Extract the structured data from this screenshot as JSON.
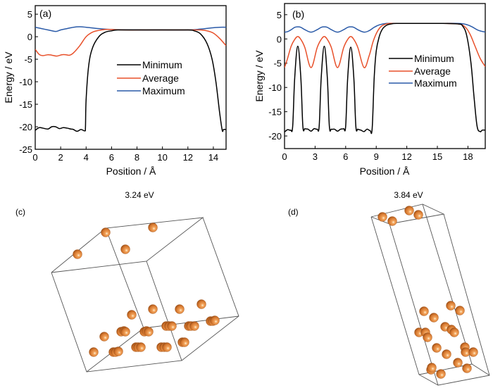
{
  "chart_data": [
    {
      "id": "a",
      "type": "line",
      "panel_label": "(a)",
      "xlabel": "Position / Å",
      "ylabel": "Energy / eV",
      "xlim": [
        0,
        15
      ],
      "ylim": [
        -25,
        6.9
      ],
      "xticks": [
        0,
        2,
        4,
        6,
        8,
        10,
        12,
        14
      ],
      "yticks": [
        5,
        0,
        -5,
        -10,
        -15,
        -20,
        -25
      ],
      "legend_position": "center-right",
      "series": [
        {
          "name": "Minimum",
          "color": "#000000",
          "x": [
            0,
            0.3,
            0.6,
            1.0,
            1.3,
            1.6,
            1.9,
            2.2,
            2.5,
            2.8,
            3.0,
            3.3,
            3.6,
            3.9,
            3.95,
            4.0,
            4.2,
            4.5,
            5.0,
            5.5,
            6.0,
            6.5,
            8,
            10,
            12,
            12.5,
            13.0,
            13.5,
            13.9,
            14.2,
            14.5,
            14.7,
            14.8,
            15.0
          ],
          "y": [
            -20.8,
            -20.2,
            -20.3,
            -20.5,
            -20.0,
            -20.0,
            -20.4,
            -20.2,
            -20.3,
            -20.5,
            -20.6,
            -21.0,
            -20.6,
            -20.9,
            -20.0,
            -14,
            -6.5,
            -2.5,
            0.0,
            1.0,
            1.3,
            1.5,
            1.5,
            1.5,
            1.5,
            1.3,
            0.6,
            -1.5,
            -5,
            -10,
            -17,
            -20.8,
            -20.6,
            -20.6
          ]
        },
        {
          "name": "Average",
          "color": "#e8502a",
          "x": [
            0,
            0.3,
            0.6,
            1.0,
            1.3,
            1.7,
            2.1,
            2.4,
            2.7,
            3.0,
            3.5,
            4.0,
            4.5,
            5.0,
            5.5,
            6.0,
            7,
            9,
            11,
            12.5,
            13.0,
            13.5,
            14.0,
            14.5,
            15.0
          ],
          "y": [
            -2.8,
            -3.9,
            -4.2,
            -4.0,
            -4.1,
            -4.3,
            -4.0,
            -4.0,
            -4.1,
            -3.6,
            -2.0,
            0.0,
            1.0,
            1.4,
            1.6,
            1.6,
            1.5,
            1.5,
            1.5,
            1.5,
            1.5,
            1.3,
            0.8,
            -0.4,
            -2.0
          ]
        },
        {
          "name": "Maximum",
          "color": "#2a5aa8",
          "x": [
            0,
            0.5,
            1.0,
            1.5,
            1.7,
            2.0,
            2.5,
            3.0,
            3.5,
            4.0,
            5.0,
            6.0,
            8,
            10,
            12,
            13,
            14,
            14.5,
            15.0
          ],
          "y": [
            2.1,
            1.8,
            1.5,
            1.2,
            1.2,
            1.5,
            1.8,
            2.1,
            2.2,
            2.1,
            1.8,
            1.6,
            1.5,
            1.5,
            1.5,
            1.7,
            2.0,
            2.1,
            2.1
          ]
        }
      ]
    },
    {
      "id": "b",
      "type": "line",
      "panel_label": "(b)",
      "xlabel": "Position / Å",
      "ylabel": "Energy / eV",
      "xlim": [
        0,
        19.7
      ],
      "ylim": [
        -22.6,
        7.3
      ],
      "xticks": [
        0,
        3,
        6,
        9,
        12,
        15,
        18
      ],
      "yticks": [
        5,
        0,
        -5,
        -10,
        -15,
        -20
      ],
      "legend_position": "center-right",
      "series": [
        {
          "name": "Minimum",
          "color": "#000000",
          "x": [
            0,
            0.3,
            0.6,
            0.8,
            1.0,
            1.3,
            1.6,
            1.8,
            2.0,
            2.3,
            2.6,
            2.9,
            3.2,
            3.4,
            3.6,
            3.9,
            4.2,
            4.4,
            4.6,
            4.9,
            5.2,
            5.5,
            5.8,
            6.0,
            6.2,
            6.5,
            6.8,
            7.0,
            7.2,
            7.5,
            7.8,
            8.1,
            8.4,
            8.6,
            8.8,
            9.0,
            9.3,
            9.6,
            10.0,
            10.5,
            11,
            13,
            15,
            17,
            17.5,
            17.9,
            18.3,
            18.6,
            18.9,
            19.2,
            19.4,
            19.7
          ],
          "y": [
            -19.2,
            -18.7,
            -18.8,
            -18.0,
            -8.0,
            -1.5,
            -8.0,
            -18.0,
            -18.5,
            -18.6,
            -19.0,
            -18.5,
            -18.6,
            -18.0,
            -8.0,
            -1.5,
            -8.0,
            -18.0,
            -18.6,
            -18.6,
            -19.0,
            -18.6,
            -18.5,
            -18.0,
            -8.0,
            -1.7,
            -8.0,
            -18.0,
            -18.6,
            -18.8,
            -19.1,
            -18.6,
            -18.9,
            -18.5,
            -8,
            -2.5,
            0.5,
            2.0,
            2.8,
            3.1,
            3.2,
            3.2,
            3.2,
            3.1,
            2.6,
            0.5,
            -5,
            -12,
            -18,
            -19.1,
            -18.8,
            -18.8
          ]
        },
        {
          "name": "Average",
          "color": "#e8502a",
          "x": [
            0,
            0.3,
            0.65,
            1.0,
            1.3,
            1.6,
            2.0,
            2.6,
            3.2,
            3.6,
            3.9,
            4.2,
            4.6,
            5.2,
            5.8,
            6.2,
            6.5,
            6.8,
            7.2,
            7.8,
            8.3,
            8.7,
            9.1,
            9.5,
            10.0,
            10.5,
            11,
            13,
            15,
            17,
            17.7,
            18.2,
            18.7,
            19.2,
            19.7
          ],
          "y": [
            -5.9,
            -4.0,
            -1.5,
            -0.1,
            0.5,
            -0.1,
            -1.8,
            -5.9,
            -1.8,
            -0.1,
            0.5,
            -0.1,
            -1.8,
            -5.9,
            -1.8,
            -0.1,
            0.5,
            -0.1,
            -1.8,
            -5.9,
            -3.5,
            -0.5,
            1.5,
            2.6,
            3.1,
            3.2,
            3.2,
            3.2,
            3.2,
            3.1,
            2.5,
            1.0,
            -1.5,
            -4.0,
            -5.7
          ]
        },
        {
          "name": "Maximum",
          "color": "#2a5aa8",
          "x": [
            0,
            0.3,
            0.65,
            1.0,
            1.3,
            1.6,
            2.0,
            2.6,
            3.2,
            3.6,
            3.9,
            4.2,
            4.6,
            5.2,
            5.8,
            6.2,
            6.5,
            6.8,
            7.2,
            7.8,
            8.3,
            8.8,
            9.3,
            10.0,
            11,
            13,
            15,
            17,
            17.8,
            18.4,
            19.0,
            19.7
          ],
          "y": [
            1.4,
            1.5,
            1.9,
            2.4,
            2.5,
            2.4,
            1.9,
            1.4,
            1.9,
            2.4,
            2.5,
            2.4,
            1.9,
            1.4,
            1.9,
            2.4,
            2.5,
            2.4,
            1.9,
            1.4,
            1.7,
            2.4,
            2.9,
            3.2,
            3.2,
            3.2,
            3.2,
            3.2,
            3.0,
            2.5,
            1.8,
            1.4
          ]
        }
      ]
    }
  ],
  "structures": [
    {
      "id": "c",
      "panel_label": "(c)",
      "caption": "3.24 eV",
      "atom_color": "#d4782a",
      "atom_count_visible": 36
    },
    {
      "id": "d",
      "panel_label": "(d)",
      "caption": "3.84 eV",
      "atom_color": "#d4782a",
      "atom_count_visible": 24
    }
  ]
}
